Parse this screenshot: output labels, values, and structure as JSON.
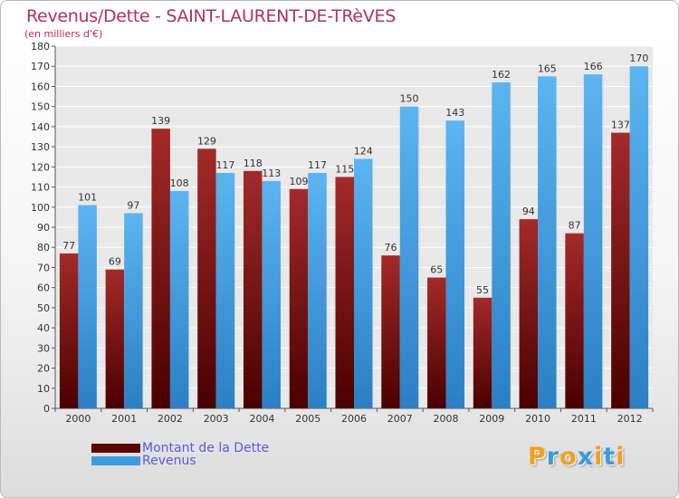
{
  "title": "Revenus/Dette - SAINT-LAURENT-DE-TRèVES",
  "subtitle": "(en milliers d'€)",
  "chart_data": {
    "type": "bar",
    "categories": [
      "2000",
      "2001",
      "2002",
      "2003",
      "2004",
      "2005",
      "2006",
      "2007",
      "2008",
      "2009",
      "2010",
      "2011",
      "2012"
    ],
    "series": [
      {
        "name": "Montant de la Dette",
        "color": "#8b1a1a",
        "values": [
          77,
          69,
          139,
          129,
          118,
          109,
          115,
          76,
          65,
          55,
          94,
          87,
          137
        ]
      },
      {
        "name": "Revenus",
        "color": "#3d9be0",
        "values": [
          101,
          97,
          108,
          117,
          113,
          117,
          124,
          150,
          143,
          162,
          165,
          166,
          170
        ]
      }
    ],
    "ylim": [
      0,
      180
    ],
    "ytick_step": 10,
    "grid": true
  },
  "legend": {
    "items": [
      {
        "label": "Montant de la Dette",
        "color": "#5a0000"
      },
      {
        "label": "Revenus",
        "color": "#3d9be0"
      }
    ]
  },
  "logo": {
    "letters": [
      "P",
      "r",
      "o",
      "x",
      "i",
      "t",
      "i"
    ],
    "colors": [
      "#f0a020",
      "#3a9ad9",
      "#f0a020",
      "#3a9ad9",
      "#f0a020",
      "#3a9ad9",
      "#f0a020"
    ]
  }
}
